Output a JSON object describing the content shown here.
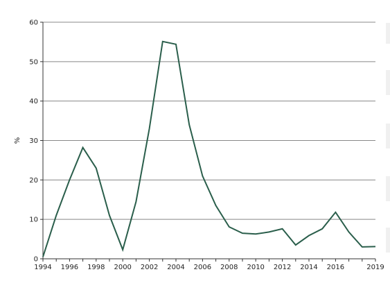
{
  "chart_data": {
    "type": "line",
    "title": "",
    "xlabel": "",
    "ylabel": "%",
    "xlim": [
      1994,
      2019
    ],
    "ylim": [
      0,
      60
    ],
    "y_ticks": [
      0,
      10,
      20,
      30,
      40,
      50,
      60
    ],
    "x_tick_labels": [
      "1994",
      "1996",
      "1998",
      "2000",
      "2002",
      "2004",
      "2006",
      "2008",
      "2010",
      "2012",
      "2014",
      "2016",
      "2019"
    ],
    "grid": "horizontal",
    "series": [
      {
        "x": [
          1994,
          1995,
          1996,
          1997,
          1998,
          1999,
          2000,
          2001,
          2002,
          2003,
          2004,
          2005,
          2006,
          2007,
          2008,
          2009,
          2010,
          2011,
          2012,
          2013,
          2014,
          2015,
          2016,
          2017,
          2018,
          2019
        ],
        "values": [
          0.5,
          11,
          20,
          28.2,
          23,
          11,
          2.3,
          14.5,
          33,
          55.1,
          54.4,
          34,
          21,
          13.5,
          8.1,
          6.5,
          6.3,
          6.8,
          7.6,
          3.5,
          5.9,
          7.6,
          11.8,
          6.8,
          3.0,
          3.1
        ]
      }
    ],
    "colors": {
      "line": "#2a5e4b",
      "grid": "#888888",
      "axis": "#333333"
    }
  }
}
